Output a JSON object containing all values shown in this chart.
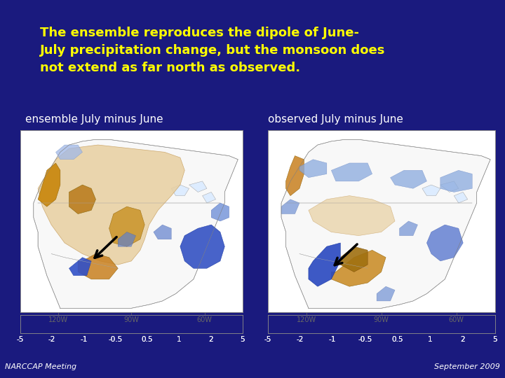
{
  "background_color": "#1a1a7e",
  "title_text": "The ensemble reproduces the dipole of June-\nJuly precipitation change, but the monsoon does\nnot extend as far north as observed.",
  "title_color": "#FFFF00",
  "title_fontsize": 13,
  "title_bold": true,
  "left_label": "ensemble July minus June",
  "right_label": "observed July minus June",
  "label_color": "#FFFFFF",
  "label_fontsize": 11,
  "footer_left": "NARCCAP Meeting",
  "footer_right": "September 2009",
  "footer_color": "#FFFFFF",
  "footer_fontsize": 8,
  "colorbar_values": [
    "-5",
    "-2",
    "-1",
    "-0.5",
    "0.5",
    "1",
    "2",
    "5"
  ],
  "colorbar_colors": [
    "#6B3000",
    "#B05A00",
    "#D4A040",
    "#E8CFA0",
    "#F0EAE0",
    "#C0CCEC",
    "#7090D8",
    "#2040C0",
    "#0000AA"
  ],
  "map_bg": "#F8F8F8",
  "divider_color": "#AAAAAA",
  "lon_ticks": [
    "120W",
    "90W",
    "60W"
  ]
}
